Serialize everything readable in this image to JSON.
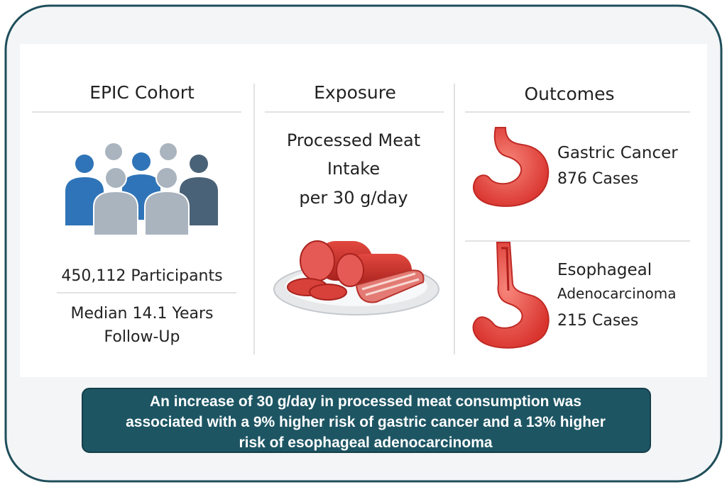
{
  "columns": [
    {
      "title": "EPIC Cohort",
      "participants": "450,112 Participants",
      "follow_up": [
        "Median 14.1 Years",
        "Follow-Up"
      ]
    },
    {
      "title": "Exposure",
      "lines": [
        "Processed Meat",
        "Intake",
        "per 30 g/day"
      ]
    },
    {
      "title": "Outcomes",
      "outcomes": [
        {
          "name": "Gastric Cancer",
          "count": "876",
          "unit": "Cases"
        },
        {
          "name": "Esophageal",
          "subname": "Adenocarcinoma",
          "count": "215",
          "unit": "Cases"
        }
      ]
    }
  ],
  "banner": [
    "An increase of 30 g/day in processed meat consumption was",
    "associated with a 9% higher risk of gastric cancer and a 13% higher",
    "risk of esophageal adenocarcinoma"
  ]
}
